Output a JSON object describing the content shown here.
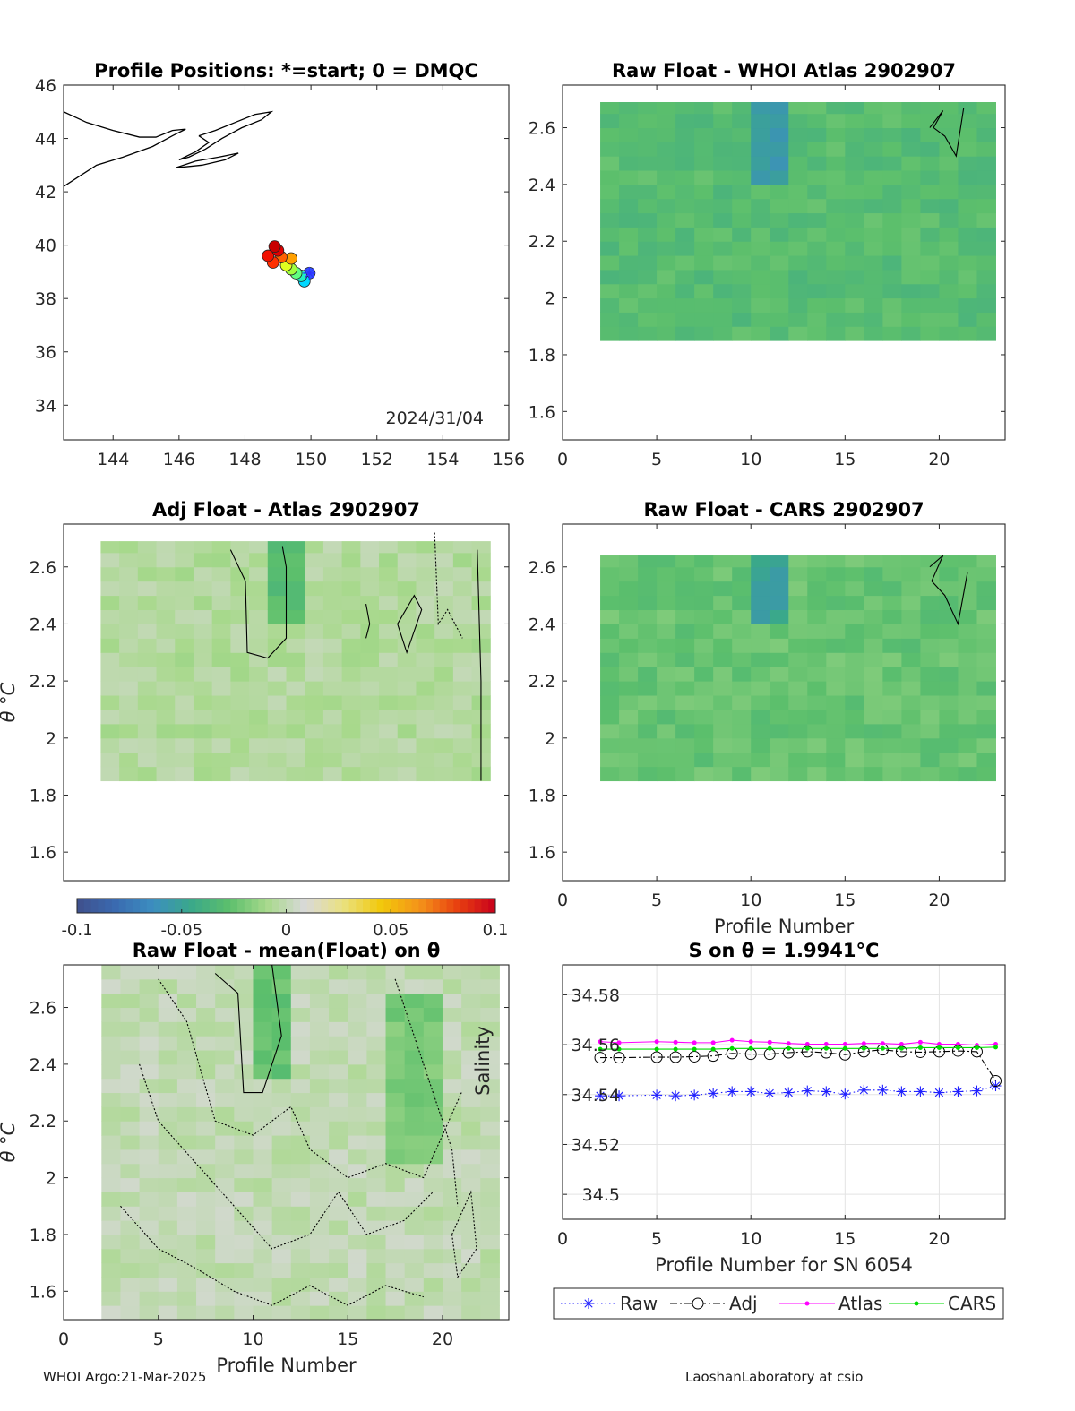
{
  "footer": {
    "left": "WHOI Argo:21-Mar-2025",
    "right": "LaoshanLaboratory at csio"
  },
  "colorbar": {
    "ticks": [
      "-0.1",
      "-0.05",
      "0",
      "0.05",
      "0.1"
    ],
    "range": [
      -0.1,
      0.1
    ],
    "colors": [
      "#40508c",
      "#3a6ab0",
      "#3c8ec0",
      "#3aa88a",
      "#5cbf6c",
      "#a8d98c",
      "#d9d9d9",
      "#eae180",
      "#f2c80a",
      "#f4931a",
      "#e84010",
      "#c8001c"
    ]
  },
  "chart_data": [
    {
      "type": "scatter",
      "title": "Profile Positions: *=start; 0 = DMQC",
      "xlim": [
        142.5,
        156
      ],
      "ylim": [
        32.7,
        46
      ],
      "xticks": [
        "144",
        "146",
        "148",
        "150",
        "152",
        "154",
        "156"
      ],
      "yticks": [
        "34",
        "36",
        "38",
        "40",
        "42",
        "44",
        "46"
      ],
      "annotation": "2024/31/04",
      "points": [
        {
          "lon": 149.95,
          "lat": 38.95,
          "color": "#3050ff"
        },
        {
          "lon": 149.8,
          "lat": 38.65,
          "color": "#00d8ff"
        },
        {
          "lon": 149.7,
          "lat": 38.85,
          "color": "#20f0c0"
        },
        {
          "lon": 149.55,
          "lat": 38.95,
          "color": "#60ff80"
        },
        {
          "lon": 149.4,
          "lat": 39.1,
          "color": "#a0ff40"
        },
        {
          "lon": 149.25,
          "lat": 39.25,
          "color": "#e0ff20"
        },
        {
          "lon": 149.4,
          "lat": 39.5,
          "color": "#ffa000"
        },
        {
          "lon": 149.1,
          "lat": 39.55,
          "color": "#ff6000"
        },
        {
          "lon": 148.85,
          "lat": 39.35,
          "color": "#ff3000"
        },
        {
          "lon": 148.7,
          "lat": 39.6,
          "color": "#f01000"
        },
        {
          "lon": 149.0,
          "lat": 39.8,
          "color": "#e00000"
        },
        {
          "lon": 148.9,
          "lat": 39.95,
          "color": "#c80000"
        }
      ]
    },
    {
      "type": "heatmap",
      "title": "Raw Float - WHOI Atlas  2902907",
      "xlim": [
        0,
        23.5
      ],
      "ylim": [
        1.5,
        2.75
      ],
      "xticks": [
        "0",
        "5",
        "10",
        "15",
        "20"
      ],
      "yticks": [
        "1.6",
        "1.8",
        "2",
        "2.2",
        "2.4",
        "2.6"
      ],
      "xlabel": "",
      "ylabel": "",
      "x_range": [
        2,
        23
      ],
      "theta_range": [
        1.85,
        2.69
      ],
      "base_value": -0.03,
      "anomalies": [
        {
          "x": [
            10,
            11
          ],
          "y": [
            2.37,
            2.69
          ],
          "value": -0.055
        }
      ]
    },
    {
      "type": "heatmap",
      "title": "Adj Float - Atlas  2902907",
      "xlim": [
        -1.5,
        22.5
      ],
      "ylim": [
        1.5,
        2.75
      ],
      "xticks": [],
      "yticks": [
        "1.6",
        "1.8",
        "2",
        "2.2",
        "2.4",
        "2.6"
      ],
      "xlabel": "",
      "ylabel": "θ °C",
      "x_range": [
        0.5,
        21.5
      ],
      "theta_range": [
        1.85,
        2.69
      ],
      "base_value": -0.005,
      "anomalies": [
        {
          "x": [
            9,
            11
          ],
          "y": [
            2.35,
            2.69
          ],
          "value": -0.03
        }
      ]
    },
    {
      "type": "heatmap",
      "title": "Raw Float - CARS  2902907",
      "xlim": [
        0,
        23.5
      ],
      "ylim": [
        1.5,
        2.75
      ],
      "xticks": [
        "0",
        "5",
        "10",
        "15",
        "20"
      ],
      "yticks": [
        "1.6",
        "1.8",
        "2",
        "2.2",
        "2.4",
        "2.6"
      ],
      "xlabel": "Profile Number",
      "ylabel": "",
      "x_range": [
        2,
        23
      ],
      "theta_range": [
        1.85,
        2.64
      ],
      "base_value": -0.025,
      "anomalies": [
        {
          "x": [
            10,
            11
          ],
          "y": [
            2.35,
            2.64
          ],
          "value": -0.05
        }
      ]
    },
    {
      "type": "heatmap",
      "title": "Raw Float - mean(Float) on θ",
      "xlim": [
        0,
        23.5
      ],
      "ylim": [
        1.5,
        2.75
      ],
      "xticks": [
        "0",
        "5",
        "10",
        "15",
        "20"
      ],
      "yticks": [
        "1.6",
        "1.8",
        "2",
        "2.2",
        "2.4",
        "2.6"
      ],
      "xlabel": "Profile Number",
      "ylabel": "θ °C",
      "x_range": [
        2,
        23
      ],
      "theta_range": [
        1.5,
        2.75
      ],
      "base_value": 0,
      "anomalies": [
        {
          "x": [
            10,
            11
          ],
          "y": [
            2.3,
            2.75
          ],
          "value": -0.025
        },
        {
          "x": [
            17,
            19
          ],
          "y": [
            2.05,
            2.6
          ],
          "value": -0.02
        }
      ]
    },
    {
      "type": "line",
      "title": "S on θ = 1.9941°C",
      "xlabel": "Profile Number for SN 6054",
      "ylabel": "Salinity",
      "xlim": [
        0,
        23.5
      ],
      "ylim": [
        34.49,
        34.592
      ],
      "xticks": [
        "0",
        "5",
        "10",
        "15",
        "20"
      ],
      "yticks": [
        "34.5",
        "34.52",
        "34.54",
        "34.56",
        "34.58"
      ],
      "grid": true,
      "legend_position": "bottom",
      "x": [
        2,
        3,
        5,
        6,
        7,
        8,
        9,
        10,
        11,
        12,
        13,
        14,
        15,
        16,
        17,
        18,
        19,
        20,
        21,
        22,
        23
      ],
      "series": [
        {
          "name": "Raw",
          "color": "#2020ff",
          "marker": "star",
          "style": "dotted",
          "values": [
            34.5395,
            34.5395,
            34.5398,
            34.5395,
            34.5398,
            34.5405,
            34.5412,
            34.5412,
            34.5405,
            34.5408,
            34.5415,
            34.5412,
            34.5402,
            34.5418,
            34.5418,
            34.5412,
            34.5412,
            34.5408,
            34.5412,
            34.5415,
            34.5435
          ]
        },
        {
          "name": "Adj",
          "color": "#000000",
          "marker": "circle",
          "style": "dashdot",
          "values": [
            34.5548,
            34.5548,
            34.555,
            34.555,
            34.5552,
            34.5555,
            34.5565,
            34.5562,
            34.5562,
            34.5568,
            34.5572,
            34.5568,
            34.556,
            34.5572,
            34.558,
            34.5572,
            34.557,
            34.5572,
            34.5575,
            34.5572,
            34.5455
          ]
        },
        {
          "name": "Atlas",
          "color": "#ff00ff",
          "marker": "dot",
          "style": "solid",
          "values": [
            34.5612,
            34.5608,
            34.5612,
            34.561,
            34.5608,
            34.5608,
            34.5618,
            34.5612,
            34.561,
            34.5605,
            34.5602,
            34.5602,
            34.5602,
            34.5605,
            34.5605,
            34.5602,
            34.561,
            34.5602,
            34.5602,
            34.5598,
            34.5602
          ]
        },
        {
          "name": "CARS",
          "color": "#00dd00",
          "marker": "dot",
          "style": "solid",
          "values": [
            34.5582,
            34.5582,
            34.5582,
            34.5582,
            34.5582,
            34.5582,
            34.5585,
            34.5585,
            34.5585,
            34.5585,
            34.5585,
            34.5585,
            34.5585,
            34.5585,
            34.5585,
            34.5585,
            34.5588,
            34.5588,
            34.5588,
            34.5588,
            34.559
          ]
        }
      ]
    }
  ]
}
